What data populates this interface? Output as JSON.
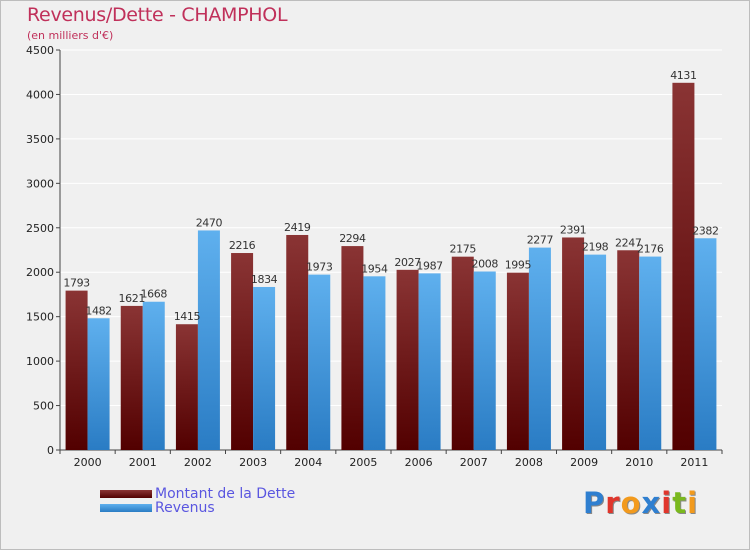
{
  "header": {
    "title": "Revenus/Dette - CHAMPHOL",
    "subtitle": "(en milliers d'€)"
  },
  "logo": {
    "text": "Proxiti",
    "letters": [
      {
        "char": "P",
        "color": "#2f7fd0"
      },
      {
        "char": "r",
        "color": "#e0362c"
      },
      {
        "char": "o",
        "color": "#f29a1d"
      },
      {
        "char": "x",
        "color": "#2f7fd0"
      },
      {
        "char": "i",
        "color": "#e0362c"
      },
      {
        "char": "t",
        "color": "#7ab81e"
      },
      {
        "char": "i",
        "color": "#f29a1d"
      }
    ]
  },
  "colors": {
    "dette": "#7a1a1a",
    "revenus": "#3f97dc",
    "title": "#c0305a",
    "legend_text": "#5a56e0"
  },
  "chart_data": {
    "type": "bar",
    "title": "Revenus/Dette - CHAMPHOL",
    "ylabel": "(en milliers d'€)",
    "categories": [
      "2000",
      "2001",
      "2002",
      "2003",
      "2004",
      "2005",
      "2006",
      "2007",
      "2008",
      "2009",
      "2010",
      "2011"
    ],
    "ylim": [
      0,
      4500
    ],
    "yticks": [
      "0",
      "500",
      "1000",
      "1500",
      "2000",
      "2500",
      "3000",
      "3500",
      "4000",
      "4500"
    ],
    "grid": true,
    "legend_placement": "bottom-left",
    "series": [
      {
        "name": "Montant de la Dette",
        "values": [
          1793,
          1621,
          1415,
          2216,
          2419,
          2294,
          2027,
          2175,
          1995,
          2391,
          2247,
          4131
        ],
        "labels": [
          "1793",
          "1621",
          "1415",
          "2216",
          "2419",
          "2294",
          "2027",
          "2175",
          "1995",
          "2391",
          "2247",
          "4131"
        ]
      },
      {
        "name": "Revenus",
        "values": [
          1482,
          1668,
          2470,
          1834,
          1973,
          1954,
          1987,
          2008,
          2277,
          2198,
          2176,
          2382
        ],
        "labels": [
          "1482",
          "1668",
          "2470",
          "1834",
          "1973",
          "1954",
          "1987",
          "2008",
          "2277",
          "2198",
          "2176",
          "2382"
        ]
      }
    ]
  }
}
